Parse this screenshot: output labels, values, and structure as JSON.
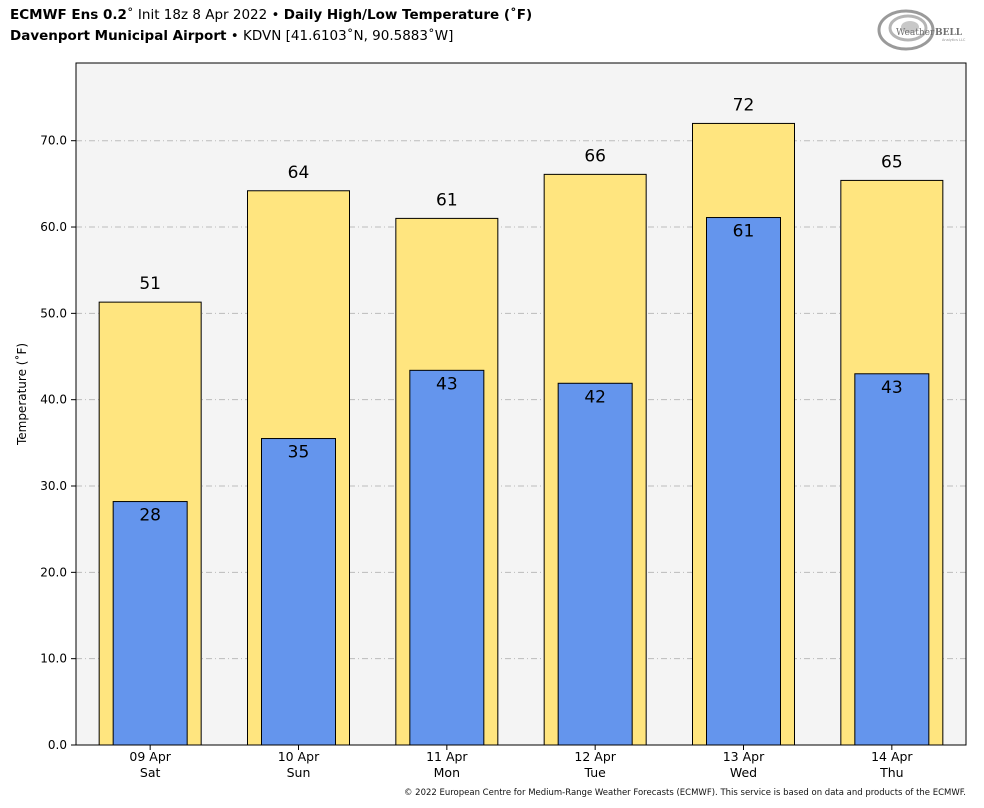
{
  "header": {
    "model": "ECMWF Ens 0.2",
    "degree_symbol": "˚",
    "init": "Init 18z 8 Apr 2022",
    "bullet": "•",
    "product": "Daily High/Low Temperature (˚F)",
    "station_name": "Davenport Municipal Airport",
    "station_id_coords": "KDVN [41.6103˚N, 90.5883˚W]"
  },
  "logo": {
    "text_a": "Weather",
    "text_b": "BELL",
    "tagline": "Analytics LLC"
  },
  "footer": {
    "credit": "© 2022 European Centre for Medium-Range Weather Forecasts (ECMWF). This service is based on data and products of the ECMWF."
  },
  "colors": {
    "high": "#ffe57f",
    "low": "#6495ed",
    "plot_bg": "#f4f4f4",
    "grid": "#bbbbbb"
  },
  "chart_data": {
    "type": "bar",
    "ylabel": "Temperature (˚F)",
    "ylim": [
      0,
      79
    ],
    "yticks": [
      "0.0",
      "10.0",
      "20.0",
      "30.0",
      "40.0",
      "50.0",
      "60.0",
      "70.0"
    ],
    "grid": true,
    "categories": [
      {
        "date": "09 Apr",
        "day": "Sat"
      },
      {
        "date": "10 Apr",
        "day": "Sun"
      },
      {
        "date": "11 Apr",
        "day": "Mon"
      },
      {
        "date": "12 Apr",
        "day": "Tue"
      },
      {
        "date": "13 Apr",
        "day": "Wed"
      },
      {
        "date": "14 Apr",
        "day": "Thu"
      }
    ],
    "series": [
      {
        "values": [
          51.3,
          64.2,
          61.0,
          66.1,
          72.0,
          65.4
        ],
        "labels": [
          "51",
          "64",
          "61",
          "66",
          "72",
          "65"
        ]
      },
      {
        "values": [
          28.2,
          35.5,
          43.4,
          41.9,
          61.1,
          43.0
        ],
        "labels": [
          "28",
          "35",
          "43",
          "42",
          "61",
          "43"
        ]
      }
    ]
  }
}
